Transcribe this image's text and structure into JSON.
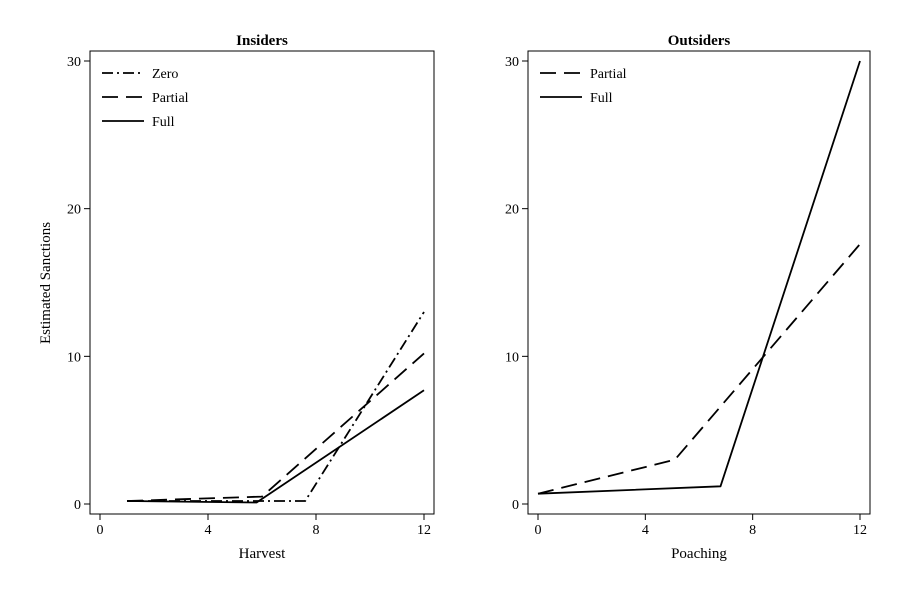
{
  "chart_data": [
    {
      "type": "line",
      "title": "Insiders",
      "xlabel": "Harvest",
      "ylabel": "Estimated Sanctions",
      "xlim": [
        0,
        12
      ],
      "ylim": [
        0,
        30
      ],
      "xticks": [
        0,
        4,
        8,
        12
      ],
      "yticks": [
        0,
        10,
        20,
        30
      ],
      "grid": false,
      "legend_position": "top-left",
      "series": [
        {
          "name": "Zero",
          "line_style": "dash-dot",
          "x": [
            1,
            6,
            7.6,
            12
          ],
          "y": [
            0.2,
            0.2,
            0.2,
            13.0
          ]
        },
        {
          "name": "Partial",
          "line_style": "long-dash",
          "x": [
            1,
            6,
            12
          ],
          "y": [
            0.2,
            0.5,
            10.2
          ]
        },
        {
          "name": "Full",
          "line_style": "solid",
          "x": [
            1,
            5.8,
            12
          ],
          "y": [
            0.2,
            0.1,
            7.7
          ]
        }
      ]
    },
    {
      "type": "line",
      "title": "Outsiders",
      "xlabel": "Poaching",
      "ylabel": "",
      "xlim": [
        0,
        12
      ],
      "ylim": [
        0,
        30
      ],
      "xticks": [
        0,
        4,
        8,
        12
      ],
      "yticks": [
        0,
        10,
        20,
        30
      ],
      "grid": false,
      "legend_position": "top-left",
      "series": [
        {
          "name": "Partial",
          "line_style": "long-dash",
          "x": [
            0,
            5.1,
            12
          ],
          "y": [
            0.7,
            3.0,
            17.6
          ]
        },
        {
          "name": "Full",
          "line_style": "solid",
          "x": [
            0,
            6.8,
            12
          ],
          "y": [
            0.7,
            1.2,
            30.0
          ]
        }
      ]
    }
  ]
}
